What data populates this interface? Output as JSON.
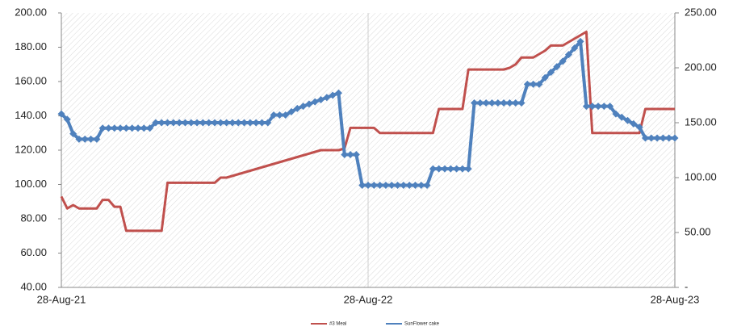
{
  "chart_data": {
    "type": "line",
    "categories": [
      "28-Aug-21",
      null,
      null,
      null,
      null,
      null,
      null,
      null,
      null,
      null,
      null,
      null,
      null,
      null,
      null,
      null,
      null,
      null,
      null,
      null,
      null,
      null,
      null,
      null,
      null,
      null,
      null,
      null,
      null,
      null,
      null,
      null,
      null,
      null,
      null,
      null,
      null,
      null,
      null,
      null,
      null,
      null,
      null,
      null,
      null,
      null,
      null,
      null,
      null,
      null,
      null,
      null,
      "28-Aug-22",
      null,
      null,
      null,
      null,
      null,
      null,
      null,
      null,
      null,
      null,
      null,
      null,
      null,
      null,
      null,
      null,
      null,
      null,
      null,
      null,
      null,
      null,
      null,
      null,
      null,
      null,
      null,
      null,
      null,
      null,
      null,
      null,
      null,
      null,
      null,
      null,
      null,
      null,
      null,
      null,
      null,
      null,
      null,
      null,
      null,
      null,
      null,
      null,
      null,
      null,
      null,
      "28-Aug-23"
    ],
    "series": [
      {
        "name": "#3 Meal",
        "color": "#c0504d",
        "values": [
          93,
          86,
          88,
          86,
          86,
          86,
          86,
          91,
          91,
          87,
          87,
          73,
          73,
          73,
          73,
          73,
          73,
          73,
          101,
          101,
          101,
          101,
          101,
          101,
          101,
          101,
          101,
          104,
          104,
          105,
          106,
          107,
          108,
          109,
          110,
          111,
          112,
          113,
          114,
          115,
          116,
          117,
          118,
          119,
          120,
          120,
          120,
          120,
          121,
          133,
          133,
          133,
          133,
          133,
          130,
          130,
          130,
          130,
          130,
          130,
          130,
          130,
          130,
          130,
          144,
          144,
          144,
          144,
          144,
          167,
          167,
          167,
          167,
          167,
          167,
          167,
          168,
          170,
          174,
          174,
          174,
          176,
          178,
          181,
          181,
          181,
          183,
          185,
          187,
          189,
          130,
          130,
          130,
          130,
          130,
          130,
          130,
          130,
          130,
          144,
          144,
          144,
          144,
          144,
          144
        ]
      },
      {
        "name": "SunFlower cake",
        "color": "#4f81bd",
        "axis": "y2",
        "values": [
          158,
          153,
          140,
          135,
          135,
          135,
          135,
          145,
          145,
          145,
          145,
          145,
          145,
          145,
          145,
          145,
          150,
          150,
          150,
          150,
          150,
          150,
          150,
          150,
          150,
          150,
          150,
          150,
          150,
          150,
          150,
          150,
          150,
          150,
          150,
          150,
          157,
          157,
          157,
          160,
          163,
          165,
          167,
          169,
          171,
          173,
          175,
          177,
          121,
          121,
          121,
          93,
          93,
          93,
          93,
          93,
          93,
          93,
          93,
          93,
          93,
          93,
          93,
          108,
          108,
          108,
          108,
          108,
          108,
          108,
          168,
          168,
          168,
          168,
          168,
          168,
          168,
          168,
          168,
          185,
          185,
          185,
          191,
          196,
          201,
          206,
          212,
          218,
          224,
          165,
          165,
          165,
          165,
          165,
          158,
          155,
          152,
          149,
          146,
          136,
          136,
          136,
          136,
          136,
          136
        ]
      }
    ],
    "ylim": [
      40,
      200
    ],
    "yticks": [
      {
        "value": 40,
        "label": "40.00"
      },
      {
        "value": 60,
        "label": "60.00"
      },
      {
        "value": 80,
        "label": "80.00"
      },
      {
        "value": 100,
        "label": "100.00"
      },
      {
        "value": 120,
        "label": "120.00"
      },
      {
        "value": 140,
        "label": "140.00"
      },
      {
        "value": 160,
        "label": "160.00"
      },
      {
        "value": 180,
        "label": "180.00"
      },
      {
        "value": 200,
        "label": "200.00"
      }
    ],
    "y2lim": [
      0,
      250
    ],
    "y2ticks": [
      {
        "value": 0,
        "label": "-"
      },
      {
        "value": 50,
        "label": "50.00"
      },
      {
        "value": 100,
        "label": "100.00"
      },
      {
        "value": 150,
        "label": "150.00"
      },
      {
        "value": 200,
        "label": "200.00"
      },
      {
        "value": 250,
        "label": "250.00"
      }
    ],
    "legend": "bottom"
  }
}
